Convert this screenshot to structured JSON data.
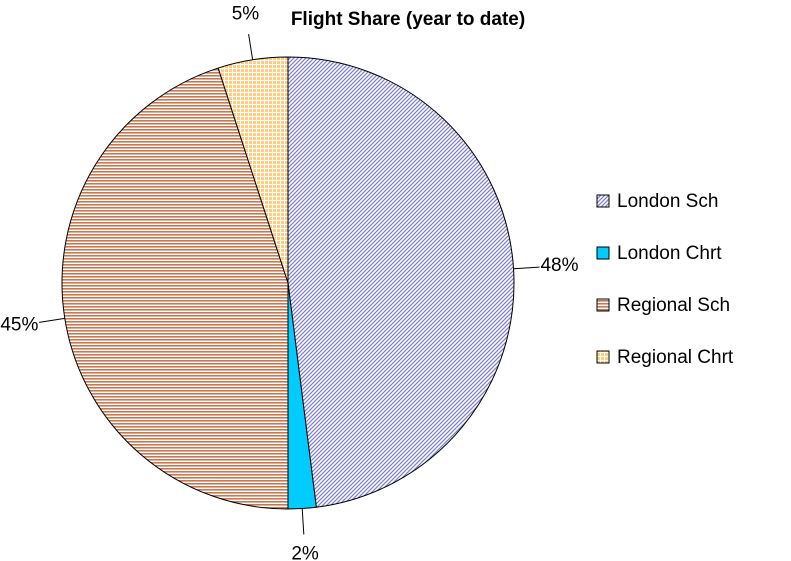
{
  "chart_data": {
    "type": "pie",
    "title": "Flight Share (year to date)",
    "categories": [
      "London Sch",
      "London Chrt",
      "Regional Sch",
      "Regional Chrt"
    ],
    "values": [
      48,
      2,
      45,
      5
    ],
    "value_labels": [
      "48%",
      "2%",
      "45%",
      "5%"
    ],
    "colors": [
      "#8080d0",
      "#00ccff",
      "#c87850",
      "#ffcc80"
    ],
    "patterns": [
      "diagonal",
      "solid",
      "horizontal",
      "grid"
    ],
    "legend": "right"
  }
}
